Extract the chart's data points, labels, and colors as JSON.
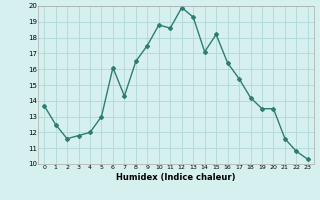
{
  "x": [
    0,
    1,
    2,
    3,
    4,
    5,
    6,
    7,
    8,
    9,
    10,
    11,
    12,
    13,
    14,
    15,
    16,
    17,
    18,
    19,
    20,
    21,
    22,
    23
  ],
  "y": [
    13.7,
    12.5,
    11.6,
    11.8,
    12.0,
    13.0,
    16.1,
    14.3,
    16.5,
    17.5,
    18.8,
    18.6,
    19.9,
    19.3,
    17.1,
    18.2,
    16.4,
    15.4,
    14.2,
    13.5,
    13.5,
    11.6,
    10.8,
    10.3
  ],
  "xlabel": "Humidex (Indice chaleur)",
  "xlim": [
    -0.5,
    23.5
  ],
  "ylim": [
    10,
    20
  ],
  "yticks": [
    10,
    11,
    12,
    13,
    14,
    15,
    16,
    17,
    18,
    19,
    20
  ],
  "xticks": [
    0,
    1,
    2,
    3,
    4,
    5,
    6,
    7,
    8,
    9,
    10,
    11,
    12,
    13,
    14,
    15,
    16,
    17,
    18,
    19,
    20,
    21,
    22,
    23
  ],
  "line_color": "#2e7d6e",
  "marker": "D",
  "marker_size": 2.0,
  "bg_color": "#d6f0f0",
  "grid_color": "#b0d8d8",
  "line_width": 1.0
}
